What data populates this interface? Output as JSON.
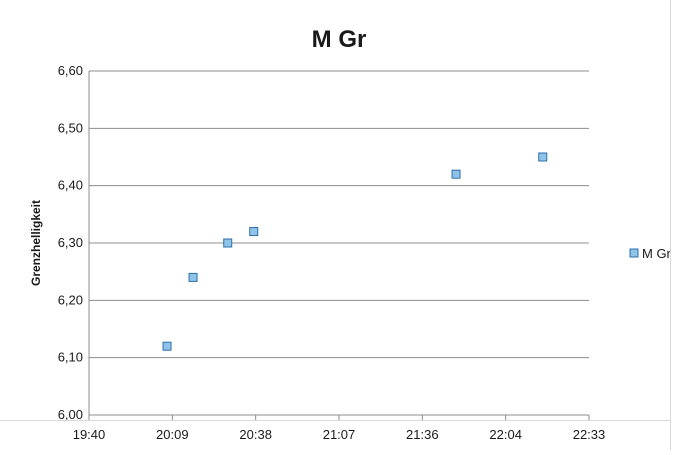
{
  "chart_data": {
    "type": "scatter",
    "title": "M Gr",
    "xlabel": "",
    "ylabel": "Grenzhelligkeit",
    "x_ticks": [
      "19:40",
      "20:09",
      "20:38",
      "21:07",
      "21:36",
      "22:04",
      "22:33"
    ],
    "y_ticks": [
      "6,00",
      "6,10",
      "6,20",
      "6,30",
      "6,40",
      "6,50",
      "6,60"
    ],
    "xlim": [
      "19:40",
      "22:33"
    ],
    "ylim": [
      6.0,
      6.6
    ],
    "grid": "horizontal",
    "legend_position": "right",
    "series": [
      {
        "name": "M Gr",
        "color": "#8ec4ea",
        "edge_color": "#2e6fa8",
        "marker": "square",
        "points": [
          {
            "x": "20:07",
            "y": 6.12
          },
          {
            "x": "20:16",
            "y": 6.24
          },
          {
            "x": "20:28",
            "y": 6.3
          },
          {
            "x": "20:37",
            "y": 6.32
          },
          {
            "x": "21:47",
            "y": 6.42
          },
          {
            "x": "22:17",
            "y": 6.45
          }
        ]
      }
    ]
  }
}
